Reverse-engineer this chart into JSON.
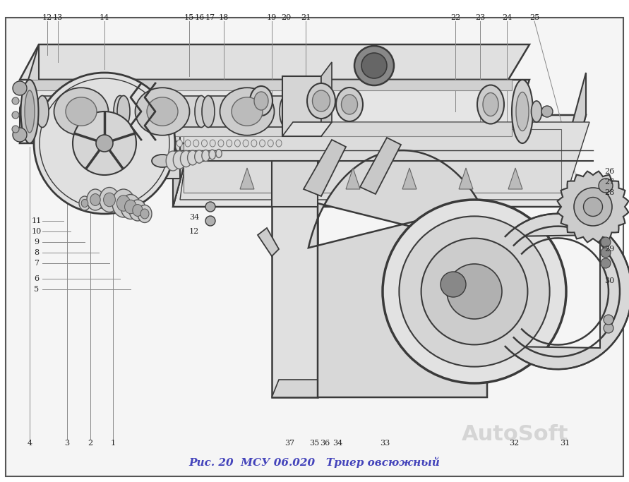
{
  "title": "Рис. 20  МСУ 06.020   Триер овсюжный",
  "title_color": "#4444bb",
  "title_fontsize": 11,
  "bg_color": "#ffffff",
  "fig_width": 8.91,
  "fig_height": 6.83,
  "dpi": 100,
  "watermark_text": "AutoSoft",
  "watermark_color": "#bbbbbb",
  "watermark_fontsize": 22,
  "draw_color": "#3a3a3a",
  "light_fill": "#d0d0d0",
  "mid_fill": "#b0b0b0",
  "dark_fill": "#888888"
}
